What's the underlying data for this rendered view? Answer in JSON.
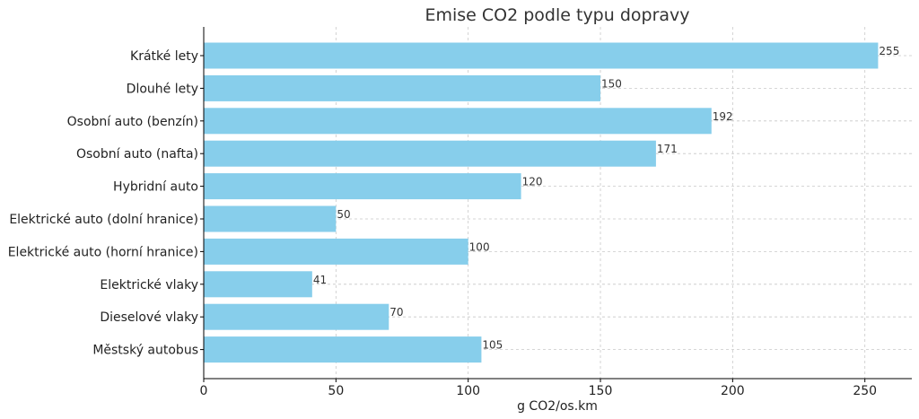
{
  "chart_data": {
    "type": "bar",
    "orientation": "horizontal",
    "title": "Emise CO2 podle typu dopravy",
    "xlabel": "g CO2/os.km",
    "ylabel": "",
    "categories": [
      "Krátké lety",
      "Dlouhé lety",
      "Osobní auto (benzín)",
      "Osobní auto (nafta)",
      "Hybridní auto",
      "Elektrické auto (dolní hranice)",
      "Elektrické auto (horní hranice)",
      "Elektrické vlaky",
      "Dieselové vlaky",
      "Městský autobus"
    ],
    "values": [
      255,
      150,
      192,
      171,
      120,
      50,
      100,
      41,
      70,
      105
    ],
    "xlim": [
      0,
      267.75
    ],
    "xticks": [
      0,
      50,
      100,
      150,
      200,
      250
    ],
    "grid": true,
    "bar_color": "#87ceeb"
  }
}
